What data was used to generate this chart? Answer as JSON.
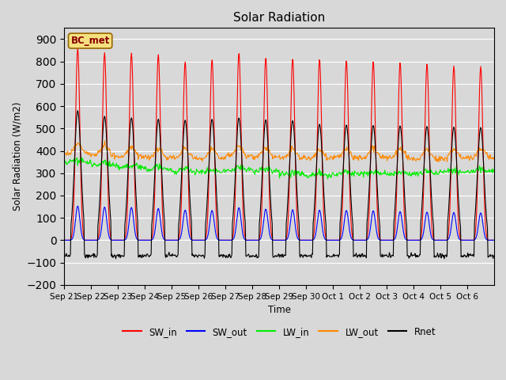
{
  "title": "Solar Radiation",
  "ylabel": "Solar Radiation (W/m2)",
  "xlabel": "Time",
  "annotation": "BC_met",
  "ylim": [
    -200,
    950
  ],
  "yticks": [
    -200,
    -100,
    0,
    100,
    200,
    300,
    400,
    500,
    600,
    700,
    800,
    900
  ],
  "x_tick_labels": [
    "Sep 21",
    "Sep 22",
    "Sep 23",
    "Sep 24",
    "Sep 25",
    "Sep 26",
    "Sep 27",
    "Sep 28",
    "Sep 29",
    "Sep 30",
    "Oct 1",
    "Oct 2",
    "Oct 3",
    "Oct 4",
    "Oct 5",
    "Oct 6"
  ],
  "line_colors": {
    "SW_in": "#ff0000",
    "SW_out": "#0000ff",
    "LW_in": "#00ee00",
    "LW_out": "#ff8800",
    "Rnet": "#000000"
  },
  "bg_color": "#d8d8d8",
  "plot_bg_color": "#d8d8d8",
  "grid_color": "#ffffff",
  "n_days": 16
}
